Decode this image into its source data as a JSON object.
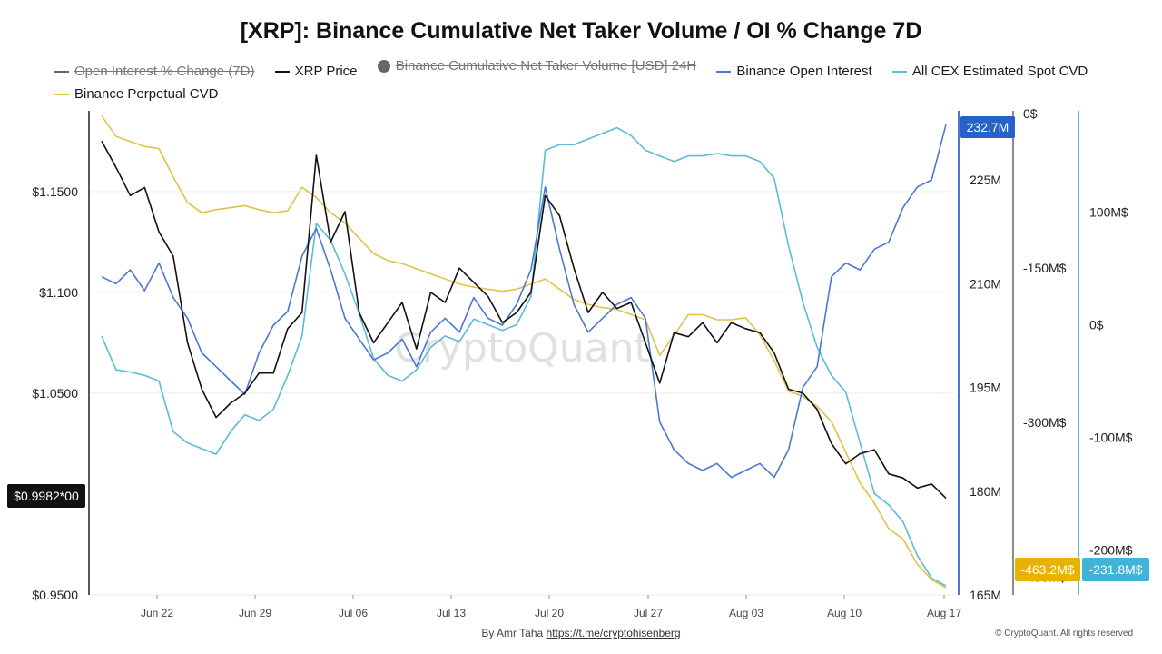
{
  "chart_data": {
    "type": "line",
    "title": "[XRP]: Binance Cumulative Net Taker Volume / OI % Change 7D",
    "legend": [
      {
        "name": "Open Interest % Change (7D)",
        "color": "#666666",
        "struck": true,
        "marker": "line"
      },
      {
        "name": "XRP Price",
        "color": "#111111",
        "struck": false,
        "marker": "line"
      },
      {
        "name": "Binance Cumulative Net Taker Volume [USD] 24H",
        "color": "#666666",
        "struck": true,
        "marker": "dot"
      },
      {
        "name": "Binance Open Interest",
        "color": "#4a78d2",
        "struck": false,
        "marker": "line"
      },
      {
        "name": "All CEX Estimated Spot CVD",
        "color": "#5bbcd6",
        "struck": false,
        "marker": "line"
      },
      {
        "name": "Binance Perpetual CVD",
        "color": "#e2c24a",
        "struck": false,
        "marker": "line"
      }
    ],
    "x_ticks": [
      "Jun 22",
      "Jun 29",
      "Jul 06",
      "Jul 13",
      "Jul 20",
      "Jul 27",
      "Aug 03",
      "Aug 10",
      "Aug 17"
    ],
    "price_axis": {
      "ticks": [
        "$1.1500",
        "$1.100",
        "$1.0500",
        "$0.9500"
      ],
      "tick_values": [
        1.15,
        1.1,
        1.05,
        0.95
      ],
      "ylim": [
        0.95,
        1.19
      ]
    },
    "oi_axis": {
      "ticks": [
        "225M",
        "210M",
        "195M",
        "180M",
        "165M"
      ],
      "tick_values": [
        225,
        210,
        195,
        180,
        165
      ],
      "ylim": [
        165,
        235
      ]
    },
    "perp_cvd_axis": {
      "ticks": [
        "0$",
        "-150M$",
        "-300M$",
        "-450M$"
      ],
      "tick_values": [
        0,
        -150,
        -300,
        -450
      ],
      "ylim": [
        -463,
        0
      ]
    },
    "spot_cvd_axis": {
      "ticks": [
        "100M$",
        "0$",
        "-100M$",
        "-200M$"
      ],
      "tick_values": [
        100,
        0,
        -100,
        -200
      ],
      "ylim": [
        -240,
        190
      ]
    },
    "current_labels": {
      "price": "$0.9982*00",
      "oi": "232.7M",
      "perp_cvd": "-463.2M$",
      "spot_cvd": "-231.8M$"
    },
    "series": [
      {
        "name": "XRP Price",
        "color": "#111111",
        "x": [
          0,
          1,
          2,
          3,
          4,
          5,
          6,
          7,
          8,
          9,
          10,
          11,
          12,
          13,
          14,
          15,
          16,
          17,
          18,
          19,
          20,
          21,
          22,
          23,
          24,
          25,
          26,
          27,
          28,
          29,
          30,
          31,
          32,
          33,
          34,
          35,
          36,
          37,
          38,
          39,
          40,
          41,
          42,
          43,
          44,
          45,
          46,
          47,
          48,
          49,
          50,
          51,
          52,
          53,
          54,
          55,
          56,
          57,
          58,
          59
        ],
        "values": [
          1.175,
          1.162,
          1.148,
          1.152,
          1.13,
          1.118,
          1.075,
          1.052,
          1.038,
          1.045,
          1.05,
          1.06,
          1.06,
          1.082,
          1.09,
          1.168,
          1.125,
          1.14,
          1.09,
          1.075,
          1.085,
          1.095,
          1.072,
          1.1,
          1.095,
          1.112,
          1.105,
          1.098,
          1.085,
          1.09,
          1.1,
          1.148,
          1.138,
          1.112,
          1.09,
          1.1,
          1.092,
          1.095,
          1.075,
          1.055,
          1.08,
          1.078,
          1.085,
          1.075,
          1.085,
          1.082,
          1.08,
          1.07,
          1.052,
          1.05,
          1.042,
          1.025,
          1.015,
          1.02,
          1.022,
          1.01,
          1.008,
          1.003,
          1.005,
          0.998
        ]
      },
      {
        "name": "Binance Open Interest",
        "color": "#4a78d2",
        "x": [
          0,
          1,
          2,
          3,
          4,
          5,
          6,
          7,
          8,
          9,
          10,
          11,
          12,
          13,
          14,
          15,
          16,
          17,
          18,
          19,
          20,
          21,
          22,
          23,
          24,
          25,
          26,
          27,
          28,
          29,
          30,
          31,
          32,
          33,
          34,
          35,
          36,
          37,
          38,
          39,
          40,
          41,
          42,
          43,
          44,
          45,
          46,
          47,
          48,
          49,
          50,
          51,
          52,
          53,
          54,
          55,
          56,
          57,
          58,
          59
        ],
        "values": [
          211,
          210,
          212,
          209,
          213,
          208,
          205,
          200,
          198,
          196,
          194,
          200,
          204,
          206,
          214,
          218,
          212,
          205,
          202,
          199,
          200,
          202,
          198,
          203,
          205,
          203,
          208,
          205,
          204,
          207,
          212,
          224,
          215,
          207,
          203,
          205,
          207,
          208,
          205,
          190,
          186,
          184,
          183,
          184,
          182,
          183,
          184,
          182,
          186,
          195,
          198,
          211,
          213,
          212,
          215,
          216,
          221,
          224,
          225,
          233
        ]
      },
      {
        "name": "Binance Perpetual CVD",
        "color": "#e2c24a",
        "x": [
          0,
          1,
          2,
          3,
          4,
          5,
          6,
          7,
          8,
          9,
          10,
          11,
          12,
          13,
          14,
          15,
          16,
          17,
          18,
          19,
          20,
          21,
          22,
          23,
          24,
          25,
          26,
          27,
          28,
          29,
          30,
          31,
          32,
          33,
          34,
          35,
          36,
          37,
          38,
          39,
          40,
          41,
          42,
          43,
          44,
          45,
          46,
          47,
          48,
          49,
          50,
          51,
          52,
          53,
          54,
          55,
          56,
          57,
          58,
          59
        ],
        "values": [
          0,
          -20,
          -25,
          -30,
          -32,
          -60,
          -85,
          -95,
          -92,
          -90,
          -88,
          -92,
          -95,
          -93,
          -70,
          -80,
          -95,
          -105,
          -120,
          -135,
          -142,
          -145,
          -150,
          -155,
          -160,
          -165,
          -168,
          -170,
          -172,
          -170,
          -165,
          -160,
          -170,
          -180,
          -185,
          -188,
          -190,
          -195,
          -200,
          -235,
          -215,
          -195,
          -195,
          -200,
          -200,
          -198,
          -215,
          -240,
          -270,
          -275,
          -285,
          -300,
          -330,
          -360,
          -380,
          -405,
          -415,
          -440,
          -455,
          -463
        ]
      },
      {
        "name": "All CEX Estimated Spot CVD",
        "color": "#5bbcd6",
        "x": [
          0,
          1,
          2,
          3,
          4,
          5,
          6,
          7,
          8,
          9,
          10,
          11,
          12,
          13,
          14,
          15,
          16,
          17,
          18,
          19,
          20,
          21,
          22,
          23,
          24,
          25,
          26,
          27,
          28,
          29,
          30,
          31,
          32,
          33,
          34,
          35,
          36,
          37,
          38,
          39,
          40,
          41,
          42,
          43,
          44,
          45,
          46,
          47,
          48,
          49,
          50,
          51,
          52,
          53,
          54,
          55,
          56,
          57,
          58,
          59
        ],
        "values": [
          -10,
          -40,
          -42,
          -45,
          -50,
          -95,
          -105,
          -110,
          -115,
          -95,
          -80,
          -85,
          -75,
          -45,
          -10,
          90,
          75,
          45,
          10,
          -30,
          -45,
          -50,
          -40,
          -20,
          -10,
          -15,
          5,
          0,
          -5,
          0,
          25,
          155,
          160,
          160,
          165,
          170,
          175,
          168,
          155,
          150,
          145,
          150,
          150,
          152,
          150,
          150,
          145,
          130,
          70,
          20,
          -20,
          -45,
          -60,
          -105,
          -150,
          -160,
          -175,
          -205,
          -225,
          -232
        ]
      }
    ],
    "grid": true,
    "legend_placement": "top-left"
  },
  "watermark": "CryptoQuant",
  "footer": {
    "author_prefix": "By Amr Taha",
    "author_link": "https://t.me/cryptohisenberg",
    "copyright": "© CryptoQuant. All rights reserved"
  }
}
